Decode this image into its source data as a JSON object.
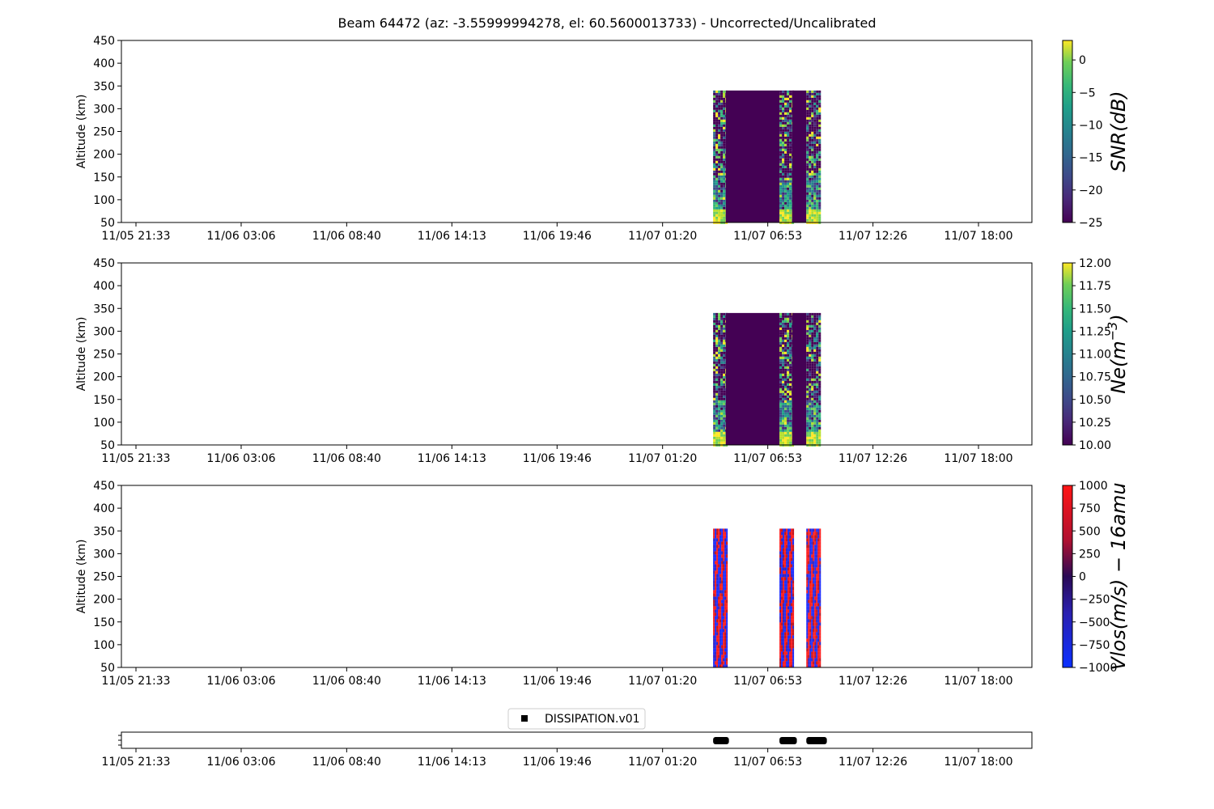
{
  "title": "Beam 64472 (az: -3.55999994278, el: 60.5600013733) - Uncorrected/Uncalibrated",
  "x_tick_labels": [
    "11/05 21:33",
    "11/06 03:06",
    "11/06 08:40",
    "11/06 14:13",
    "11/06 19:46",
    "11/07 01:20",
    "11/07 06:53",
    "11/07 12:26",
    "11/07 18:00"
  ],
  "chart_data": [
    {
      "type": "heatmap",
      "ylabel": "Altitude (km)",
      "ylim": [
        50,
        450
      ],
      "y_ticks": [
        50,
        100,
        150,
        200,
        250,
        300,
        350,
        400,
        450
      ],
      "x_ticks": [
        "11/05 21:33",
        "11/06 03:06",
        "11/06 08:40",
        "11/06 14:13",
        "11/06 19:46",
        "11/07 01:20",
        "11/07 06:53",
        "11/07 12:26",
        "11/07 18:00"
      ],
      "colorbar": {
        "label": "SNR(dB)",
        "colormap": "viridis",
        "min": -25,
        "max": 3,
        "ticks": [
          0,
          -5,
          -10,
          -15,
          -20,
          -25
        ]
      },
      "data_alt_range": [
        50,
        340
      ],
      "data_blocks": [
        {
          "start": "11/07 04:00",
          "end": "11/07 04:40",
          "fill": "noisy",
          "low_alt_bright": true
        },
        {
          "start": "11/07 04:40",
          "end": "11/07 07:30",
          "fill": "min"
        },
        {
          "start": "11/07 07:30",
          "end": "11/07 08:10",
          "fill": "noisy",
          "low_alt_bright": true
        },
        {
          "start": "11/07 08:10",
          "end": "11/07 08:55",
          "fill": "min"
        },
        {
          "start": "11/07 08:55",
          "end": "11/07 09:40",
          "fill": "noisy",
          "low_alt_bright": true
        }
      ]
    },
    {
      "type": "heatmap",
      "ylabel": "Altitude (km)",
      "ylim": [
        50,
        450
      ],
      "y_ticks": [
        50,
        100,
        150,
        200,
        250,
        300,
        350,
        400,
        450
      ],
      "x_ticks": [
        "11/05 21:33",
        "11/06 03:06",
        "11/06 08:40",
        "11/06 14:13",
        "11/06 19:46",
        "11/07 01:20",
        "11/07 06:53",
        "11/07 12:26",
        "11/07 18:00"
      ],
      "colorbar": {
        "label": "Ne(m^-3)",
        "colormap": "viridis",
        "min": 10.0,
        "max": 12.0,
        "ticks": [
          "12.00",
          "11.75",
          "11.50",
          "11.25",
          "11.00",
          "10.75",
          "10.50",
          "10.25",
          "10.00"
        ]
      },
      "data_alt_range": [
        50,
        340
      ],
      "data_blocks": [
        {
          "start": "11/07 04:00",
          "end": "11/07 04:40",
          "fill": "noisy",
          "low_alt_bright": true
        },
        {
          "start": "11/07 04:40",
          "end": "11/07 07:30",
          "fill": "min"
        },
        {
          "start": "11/07 07:30",
          "end": "11/07 08:10",
          "fill": "noisy",
          "low_alt_bright": true
        },
        {
          "start": "11/07 08:10",
          "end": "11/07 08:55",
          "fill": "min"
        },
        {
          "start": "11/07 08:55",
          "end": "11/07 09:40",
          "fill": "noisy",
          "low_alt_bright": true
        }
      ]
    },
    {
      "type": "heatmap",
      "ylabel": "Altitude (km)",
      "ylim": [
        50,
        450
      ],
      "y_ticks": [
        50,
        100,
        150,
        200,
        250,
        300,
        350,
        400,
        450
      ],
      "x_ticks": [
        "11/05 21:33",
        "11/06 03:06",
        "11/06 08:40",
        "11/06 14:13",
        "11/06 19:46",
        "11/07 01:20",
        "11/07 06:53",
        "11/07 12:26",
        "11/07 18:00"
      ],
      "colorbar": {
        "label": "Vlos(m/s)-16amu",
        "colormap": "bwr-dark",
        "min": -1000,
        "max": 1000,
        "ticks": [
          1000,
          750,
          500,
          250,
          0,
          -250,
          -500,
          -750,
          -1000
        ]
      },
      "data_alt_range": [
        50,
        355
      ],
      "data_blocks": [
        {
          "start": "11/07 04:00",
          "end": "11/07 04:45",
          "fill": "velocity"
        },
        {
          "start": "11/07 07:30",
          "end": "11/07 08:15",
          "fill": "velocity"
        },
        {
          "start": "11/07 08:55",
          "end": "11/07 09:40",
          "fill": "velocity"
        }
      ]
    },
    {
      "type": "scatter",
      "x_ticks": [
        "11/05 21:33",
        "11/06 03:06",
        "11/06 08:40",
        "11/06 14:13",
        "11/06 19:46",
        "11/07 01:20",
        "11/07 06:53",
        "11/07 12:26",
        "11/07 18:00"
      ],
      "legend": "DISSIPATION.v01",
      "legend_placement": "top-center",
      "marker": "square",
      "color": "#000000",
      "segments": [
        {
          "start": "11/07 04:00",
          "end": "11/07 04:50"
        },
        {
          "start": "11/07 07:30",
          "end": "11/07 08:25"
        },
        {
          "start": "11/07 08:55",
          "end": "11/07 10:00"
        }
      ]
    }
  ]
}
